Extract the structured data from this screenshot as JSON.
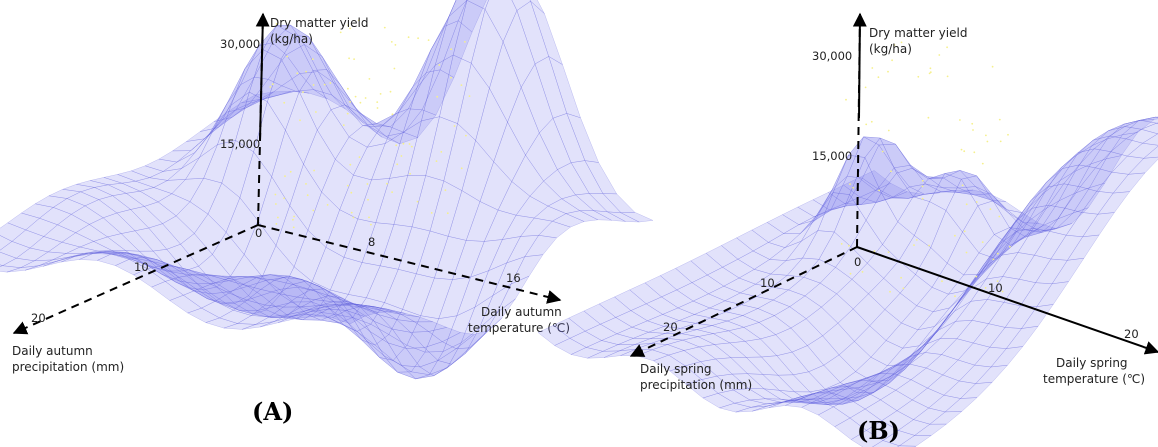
{
  "figure": {
    "panels": [
      "(A)",
      "(B)"
    ]
  },
  "chart_data": [
    {
      "type": "surface3d",
      "panel": "(A)",
      "z_axis": {
        "label_line1": "Dry matter yield",
        "label_line2": "(kg/ha)",
        "ticks": [
          "30,000",
          "15,000"
        ],
        "origin": "0"
      },
      "x_axis": {
        "label_line1": "Daily autumn",
        "label_line2": "temperature (℃)",
        "ticks": [
          "8",
          "16"
        ]
      },
      "y_axis": {
        "label_line1": "Daily autumn",
        "label_line2": "precipitation (mm)",
        "ticks": [
          "10",
          "20"
        ]
      },
      "zlim": [
        0,
        30000
      ],
      "surface_color": "#7b7bef",
      "point_color": "#f5f08c"
    },
    {
      "type": "surface3d",
      "panel": "(B)",
      "z_axis": {
        "label_line1": "Dry matter yield",
        "label_line2": "(kg/ha)",
        "ticks": [
          "30,000",
          "15,000"
        ],
        "origin": "0"
      },
      "x_axis": {
        "label_line1": "Daily spring",
        "label_line2": "temperature (℃)",
        "ticks": [
          "10",
          "20"
        ]
      },
      "y_axis": {
        "label_line1": "Daily spring",
        "label_line2": "precipitation (mm)",
        "ticks": [
          "10",
          "20"
        ]
      },
      "zlim": [
        0,
        30000
      ],
      "surface_color": "#7b7bef",
      "point_color": "#f5f08c"
    }
  ]
}
